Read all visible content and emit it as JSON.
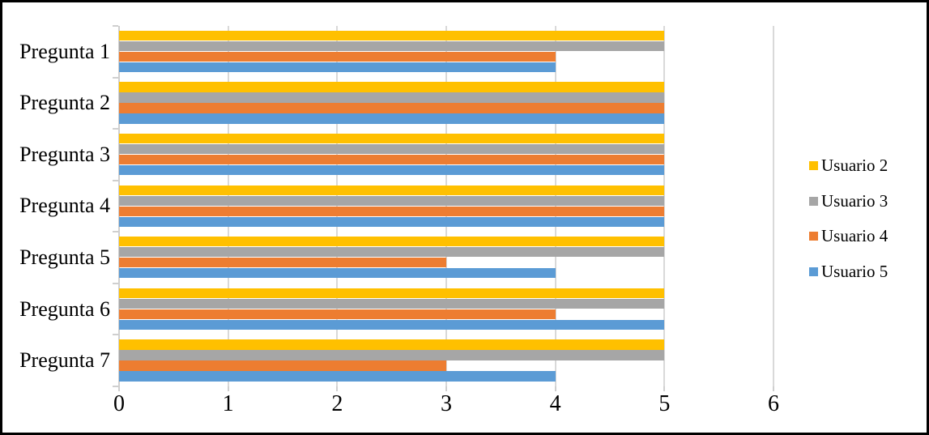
{
  "chart_data": {
    "type": "bar",
    "orientation": "horizontal",
    "title": "",
    "categories": [
      "Pregunta 1",
      "Pregunta 2",
      "Pregunta 3",
      "Pregunta 4",
      "Pregunta 5",
      "Pregunta 6",
      "Pregunta 7"
    ],
    "series": [
      {
        "name": "Usuario 2",
        "color": "#FFC000",
        "values": [
          5,
          5,
          5,
          5,
          5,
          5,
          5
        ]
      },
      {
        "name": "Usuario 3",
        "color": "#A6A6A6",
        "values": [
          5,
          5,
          5,
          5,
          5,
          5,
          5
        ]
      },
      {
        "name": "Usuario 4",
        "color": "#ED7D31",
        "values": [
          4,
          5,
          5,
          5,
          3,
          4,
          3
        ]
      },
      {
        "name": "Usuario 5",
        "color": "#5B9BD5",
        "values": [
          4,
          5,
          5,
          5,
          4,
          5,
          4
        ]
      }
    ],
    "series_order_in_group": "top-to-bottom",
    "x_axis": {
      "min": 0,
      "max": 6,
      "ticks": [
        "0",
        "1",
        "2",
        "3",
        "4",
        "5",
        "6"
      ]
    },
    "y_axis": {
      "label": ""
    },
    "grid": "vertical-only",
    "legend_position": "right"
  },
  "colors": {
    "gridline": "#D9D9D9",
    "axis": "#CFCFCF",
    "text": "#000000",
    "frame_border": "#000000",
    "background": "#FFFFFF"
  }
}
